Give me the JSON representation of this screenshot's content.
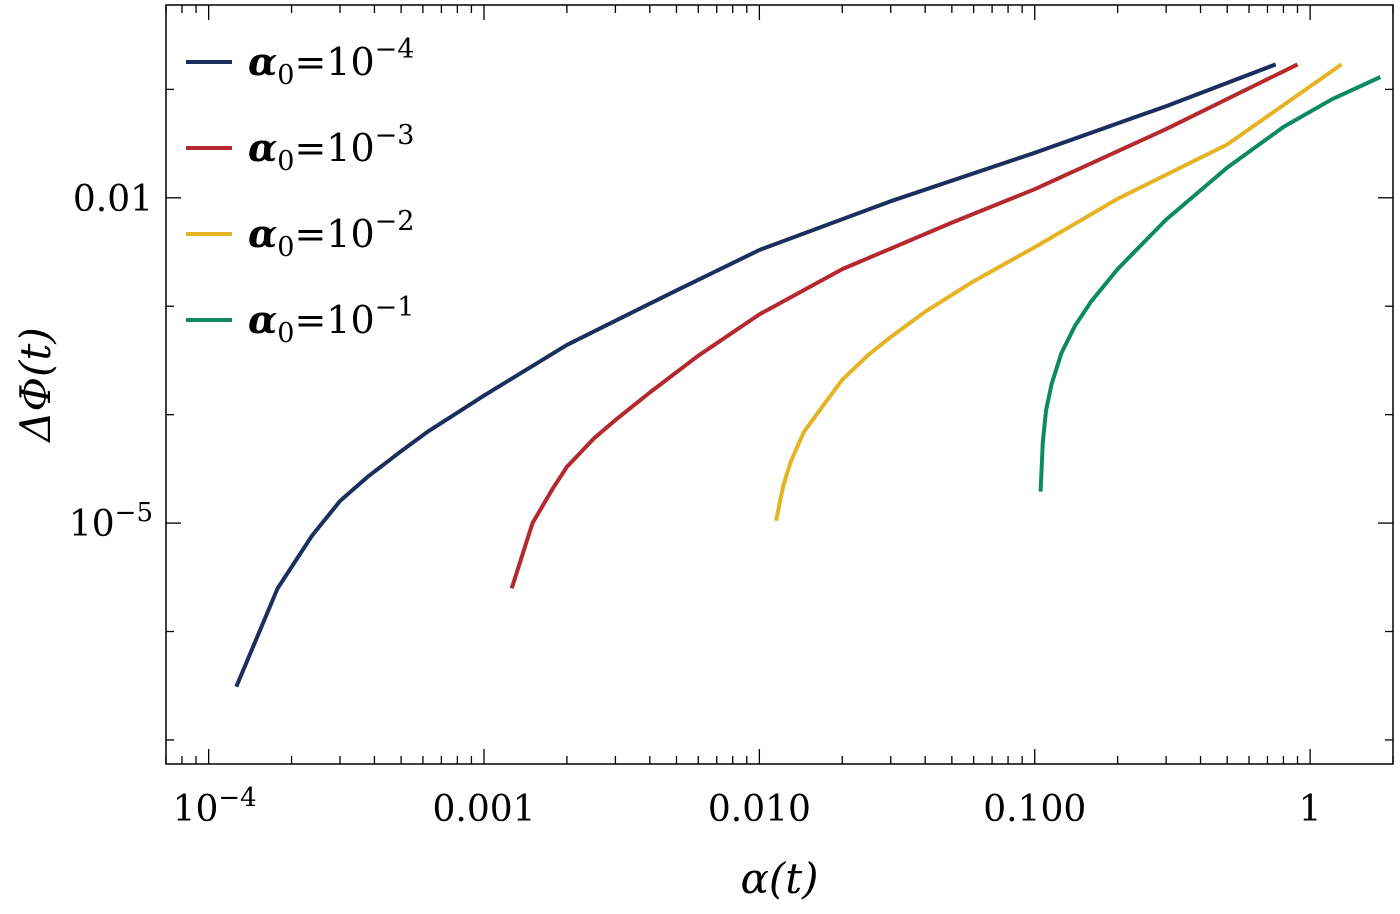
{
  "chart_data": {
    "type": "line",
    "xscale": "log",
    "yscale": "log",
    "xlabel": "α(t)",
    "ylabel": "ΔΦ(t)",
    "xlim": [
      7e-05,
      2.0
    ],
    "ylim": [
      6e-08,
      0.6
    ],
    "x_ticks": [
      {
        "value": 0.0001,
        "base": "10",
        "exp": "−4"
      },
      {
        "value": 0.001,
        "label": "0.001"
      },
      {
        "value": 0.01,
        "label": "0.010"
      },
      {
        "value": 0.1,
        "label": "0.100"
      },
      {
        "value": 1,
        "label": "1"
      }
    ],
    "y_ticks": [
      {
        "value": 0.01,
        "label": "0.01"
      },
      {
        "value": 1e-05,
        "base": "10",
        "exp": "−5"
      }
    ],
    "grid": false,
    "legend_position": "top-left",
    "series": [
      {
        "name": "α0=10−4",
        "legend": {
          "sym": "α",
          "sub": "0",
          "eq": "=10",
          "exp": "−4"
        },
        "color": "#1b2f5e",
        "x": [
          0.000126,
          0.000178,
          0.000237,
          0.0003,
          0.00038,
          0.0005,
          0.000631,
          0.000794,
          0.001,
          0.002,
          0.005,
          0.01,
          0.03,
          0.1,
          0.3,
          0.75
        ],
        "y": [
          3.1e-07,
          2.5e-06,
          7.6e-06,
          1.6e-05,
          2.7e-05,
          4.6e-05,
          7.1e-05,
          0.000103,
          0.00015,
          0.00044,
          0.0014,
          0.0033,
          0.0093,
          0.026,
          0.07,
          0.17
        ]
      },
      {
        "name": "α0=10−3",
        "legend": {
          "sym": "α",
          "sub": "0",
          "eq": "=10",
          "exp": "−3"
        },
        "color": "#b5282e",
        "x": [
          0.00126,
          0.0015,
          0.00178,
          0.002,
          0.0025,
          0.003,
          0.004,
          0.006,
          0.01,
          0.02,
          0.05,
          0.1,
          0.3,
          0.9
        ],
        "y": [
          2.5e-06,
          1e-05,
          2.1e-05,
          3.3e-05,
          6e-05,
          8.9e-05,
          0.00016,
          0.00035,
          0.00084,
          0.0022,
          0.0059,
          0.012,
          0.043,
          0.17
        ]
      },
      {
        "name": "α0=10−2",
        "legend": {
          "sym": "α",
          "sub": "0",
          "eq": "=10",
          "exp": "−2"
        },
        "color": "#e6b324",
        "x": [
          0.0115,
          0.0122,
          0.013,
          0.0145,
          0.017,
          0.02,
          0.025,
          0.03,
          0.04,
          0.06,
          0.1,
          0.2,
          0.5,
          1.3
        ],
        "y": [
          1.05e-05,
          2.2e-05,
          3.7e-05,
          6.9e-05,
          0.00012,
          0.00021,
          0.00036,
          0.00052,
          0.00089,
          0.0017,
          0.0035,
          0.0098,
          0.031,
          0.17
        ]
      },
      {
        "name": "α0=10−1",
        "legend": {
          "sym": "α",
          "sub": "0",
          "eq": "=10",
          "exp": "−1"
        },
        "color": "#0d8a63",
        "x": [
          0.105,
          0.107,
          0.11,
          0.115,
          0.125,
          0.14,
          0.16,
          0.2,
          0.3,
          0.5,
          0.8,
          1.2,
          1.8
        ],
        "y": [
          1.95e-05,
          5.6e-05,
          0.00011,
          0.00019,
          0.00037,
          0.00066,
          0.0011,
          0.0022,
          0.0063,
          0.019,
          0.045,
          0.081,
          0.13
        ]
      }
    ]
  }
}
